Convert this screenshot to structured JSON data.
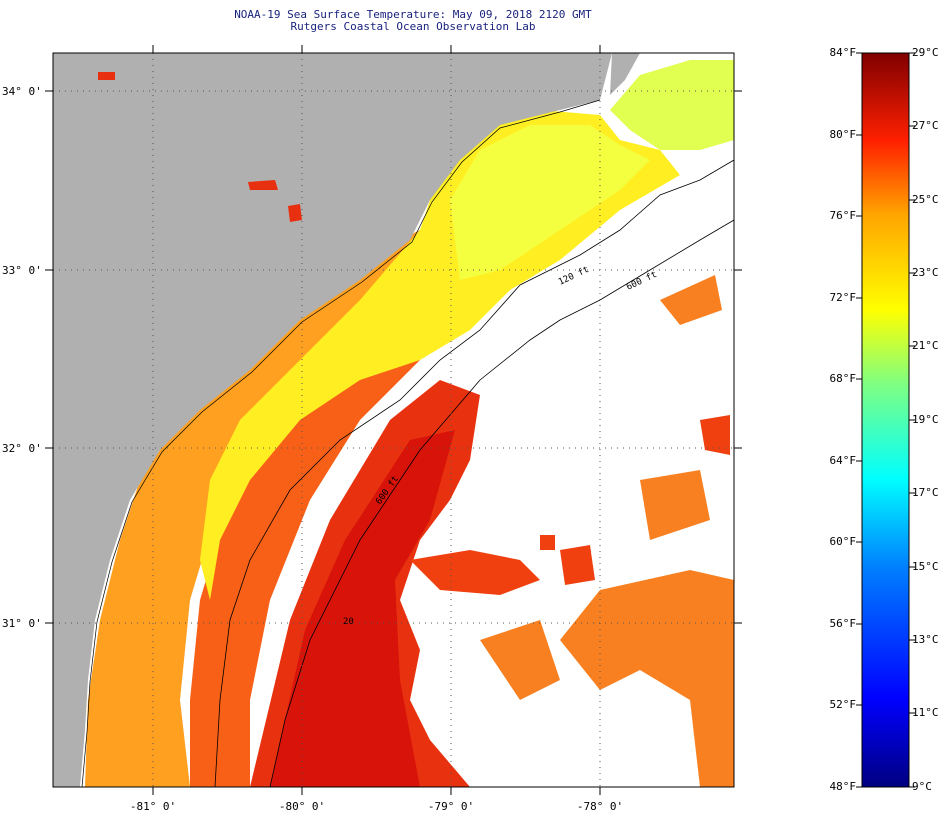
{
  "title": {
    "line1": "NOAA-19 Sea Surface Temperature:  May 09, 2018 2120 GMT",
    "line2": "Rutgers Coastal Ocean Observation Lab"
  },
  "map": {
    "lat_labels": [
      "34° 0'",
      "33° 0'",
      "32° 0'",
      "31° 0'"
    ],
    "lon_labels": [
      "-81° 0'",
      "-80° 0'",
      "-79° 0'",
      "-78° 0'"
    ],
    "isobath_labels": [
      "120 ft",
      "600 ft",
      "600 ft",
      "20"
    ],
    "colors": {
      "land": "#b0b0b0",
      "no_data": "#ffffff",
      "nearshore": "#ffcc00",
      "shelf": "#ffff33",
      "gulf_stream": "#e61e0f",
      "gulf_stream_core": "#d80f0a"
    }
  },
  "colorbar": {
    "fahrenheit_labels": [
      "84°F",
      "80°F",
      "76°F",
      "72°F",
      "68°F",
      "64°F",
      "60°F",
      "56°F",
      "52°F",
      "48°F"
    ],
    "celsius_labels": [
      "29°C",
      "27°C",
      "25°C",
      "23°C",
      "21°C",
      "19°C",
      "17°C",
      "15°C",
      "13°C",
      "11°C",
      "9°C"
    ],
    "range_f": [
      48,
      84
    ],
    "range_c": [
      9,
      29
    ]
  }
}
